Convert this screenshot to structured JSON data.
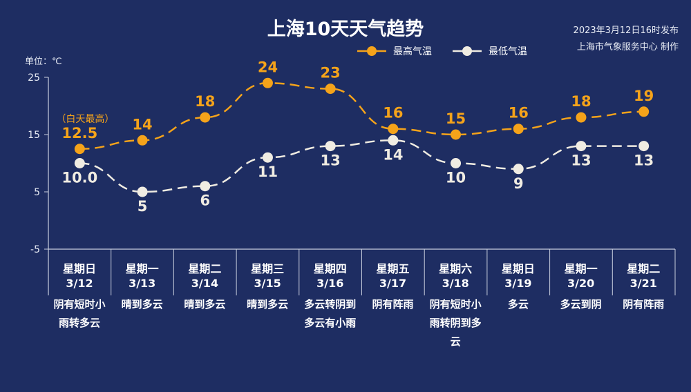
{
  "title": "上海10天天气趋势",
  "publish": {
    "time": "2023年3月12日16时发布",
    "org": "上海市气象服务中心 制作"
  },
  "chart_data": {
    "type": "line",
    "title": "上海10天天气趋势",
    "ylabel": "单位：℃",
    "ylim": [
      -5,
      25
    ],
    "yticks": [
      25,
      15,
      5,
      -5
    ],
    "grid": false,
    "legend_position": "top-right",
    "annotation": "（白天最高）",
    "categories": [
      {
        "weekday": "星期日",
        "date": "3/12",
        "weather": "阴有短时小雨转多云"
      },
      {
        "weekday": "星期一",
        "date": "3/13",
        "weather": "晴到多云"
      },
      {
        "weekday": "星期二",
        "date": "3/14",
        "weather": "晴到多云"
      },
      {
        "weekday": "星期三",
        "date": "3/15",
        "weather": "晴到多云"
      },
      {
        "weekday": "星期四",
        "date": "3/16",
        "weather": "多云转阴到多云有小雨"
      },
      {
        "weekday": "星期五",
        "date": "3/17",
        "weather": "阴有阵雨"
      },
      {
        "weekday": "星期六",
        "date": "3/18",
        "weather": "阴有短时小雨转阴到多云"
      },
      {
        "weekday": "星期日",
        "date": "3/19",
        "weather": "多云"
      },
      {
        "weekday": "星期一",
        "date": "3/20",
        "weather": "多云到阴"
      },
      {
        "weekday": "星期二",
        "date": "3/21",
        "weather": "阴有阵雨"
      }
    ],
    "series": [
      {
        "name": "最高气温",
        "color": "#f5a31a",
        "values": [
          12.5,
          14,
          18,
          24,
          23,
          16,
          15,
          16,
          18,
          19
        ],
        "labels": [
          "12.5",
          "14",
          "18",
          "24",
          "23",
          "16",
          "15",
          "16",
          "18",
          "19"
        ]
      },
      {
        "name": "最低气温",
        "color": "#f0ece2",
        "values": [
          10.0,
          5,
          6,
          11,
          13,
          14,
          10,
          9,
          13,
          13
        ],
        "labels": [
          "10.0",
          "5",
          "6",
          "11",
          "13",
          "14",
          "10",
          "9",
          "13",
          "13"
        ]
      }
    ]
  }
}
